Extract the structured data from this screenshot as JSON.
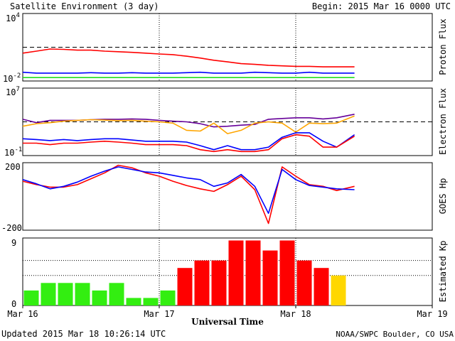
{
  "header": {
    "title": "Satellite Environment (3 day)",
    "begin": "Begin:  2015 Mar 16 0000 UTC"
  },
  "footer": {
    "updated": "Updated 2015 Mar 18 10:26:14 UTC",
    "credit": "NOAA/SWPC Boulder, CO USA"
  },
  "xaxis": {
    "label": "Universal Time",
    "ticks": [
      "Mar 16",
      "Mar 17",
      "Mar 18",
      "Mar 19"
    ]
  },
  "colors": {
    "red": "#ff0000",
    "blue": "#0000ff",
    "green": "#22dd22",
    "orange": "#ffa500",
    "purple": "#660099",
    "kp_green": "#33ee11",
    "kp_red": "#ff0000",
    "kp_yellow": "#ffd700"
  },
  "chart_data": [
    {
      "type": "line",
      "panel": "proton",
      "ylabel": "Proton Flux",
      "ytick_top": "10",
      "ytick_top_exp": "4",
      "ytick_bottom": "10",
      "ytick_bottom_exp": "-2",
      "scale": "log",
      "ylim": [
        0.01,
        10000
      ],
      "threshold": 10,
      "x_days": [
        0,
        0.1,
        0.2,
        0.3,
        0.4,
        0.5,
        0.6,
        0.7,
        0.8,
        0.9,
        1.0,
        1.1,
        1.2,
        1.3,
        1.4,
        1.5,
        1.6,
        1.7,
        1.8,
        1.9,
        2.0,
        2.1,
        2.2,
        2.3,
        2.43
      ],
      "series": [
        {
          "color": "red",
          "values": [
            3,
            4.5,
            7,
            6.5,
            5.5,
            5.5,
            4.5,
            4,
            3.5,
            3,
            2.5,
            2.2,
            1.6,
            1.1,
            0.7,
            0.5,
            0.35,
            0.3,
            0.25,
            0.22,
            0.2,
            0.2,
            0.18,
            0.18,
            0.18
          ]
        },
        {
          "color": "blue",
          "values": [
            0.06,
            0.05,
            0.05,
            0.05,
            0.05,
            0.055,
            0.05,
            0.05,
            0.055,
            0.05,
            0.05,
            0.05,
            0.055,
            0.06,
            0.05,
            0.05,
            0.05,
            0.06,
            0.055,
            0.05,
            0.05,
            0.06,
            0.05,
            0.05,
            0.05
          ]
        },
        {
          "color": "green",
          "values": [
            0.02,
            0.02,
            0.02,
            0.02,
            0.02,
            0.02,
            0.02,
            0.02,
            0.02,
            0.02,
            0.02,
            0.02,
            0.02,
            0.02,
            0.02,
            0.02,
            0.02,
            0.02,
            0.02,
            0.02,
            0.02,
            0.02,
            0.02,
            0.02,
            0.02
          ]
        }
      ]
    },
    {
      "type": "line",
      "panel": "electron",
      "ylabel": "Electron Flux",
      "ytick_top": "10",
      "ytick_top_exp": "7",
      "ytick_bottom": "10",
      "ytick_bottom_exp": "-1",
      "scale": "log",
      "ylim": [
        0.1,
        10000000
      ],
      "threshold": 1000,
      "x_days": [
        0,
        0.1,
        0.2,
        0.3,
        0.4,
        0.5,
        0.6,
        0.7,
        0.8,
        0.9,
        1.0,
        1.1,
        1.2,
        1.3,
        1.4,
        1.5,
        1.6,
        1.7,
        1.8,
        1.9,
        2.0,
        2.1,
        2.2,
        2.3,
        2.43
      ],
      "series": [
        {
          "color": "purple",
          "values": [
            2000,
            800,
            1500,
            1500,
            1500,
            1800,
            2000,
            2000,
            2200,
            2000,
            1500,
            1200,
            1000,
            600,
            250,
            300,
            400,
            500,
            2000,
            2500,
            3000,
            3000,
            2200,
            3000,
            8000
          ]
        },
        {
          "color": "orange",
          "values": [
            300,
            600,
            800,
            1200,
            1500,
            1800,
            1600,
            1400,
            1500,
            1200,
            1000,
            700,
            100,
            80,
            700,
            40,
            100,
            700,
            1000,
            700,
            60,
            700,
            600,
            700,
            5000
          ]
        },
        {
          "color": "blue",
          "values": [
            10,
            8,
            6,
            8,
            6,
            8,
            10,
            10,
            7,
            5,
            5,
            5,
            4,
            1.5,
            0.5,
            1.5,
            0.5,
            0.5,
            1,
            15,
            50,
            50,
            5,
            1,
            30
          ]
        },
        {
          "color": "red",
          "values": [
            3,
            3,
            2,
            3,
            3,
            4,
            5,
            4,
            3,
            2,
            2,
            2,
            1.5,
            0.5,
            0.3,
            0.5,
            0.3,
            0.3,
            0.5,
            10,
            30,
            20,
            1,
            1,
            20
          ]
        }
      ]
    },
    {
      "type": "line",
      "panel": "goes_hp",
      "ylabel": "GOES Hp",
      "ytick_top": "200",
      "ytick_bottom": "-200",
      "ylim": [
        -200,
        200
      ],
      "x_days": [
        0,
        0.1,
        0.2,
        0.3,
        0.4,
        0.5,
        0.6,
        0.7,
        0.8,
        0.9,
        1.0,
        1.1,
        1.2,
        1.3,
        1.4,
        1.5,
        1.6,
        1.7,
        1.8,
        1.9,
        2.0,
        2.1,
        2.2,
        2.3,
        2.43
      ],
      "series": [
        {
          "color": "red",
          "values": [
            90,
            70,
            55,
            55,
            70,
            105,
            140,
            185,
            170,
            140,
            120,
            90,
            65,
            45,
            30,
            70,
            120,
            40,
            -160,
            175,
            120,
            70,
            60,
            35,
            60
          ]
        },
        {
          "color": "blue",
          "values": [
            100,
            75,
            45,
            60,
            85,
            120,
            150,
            175,
            160,
            145,
            140,
            125,
            110,
            100,
            60,
            80,
            130,
            60,
            -100,
            160,
            100,
            65,
            55,
            45,
            40
          ]
        }
      ]
    },
    {
      "type": "bar",
      "panel": "kp",
      "ylabel": "Estimated Kp",
      "ytick_top": "9",
      "ytick_bottom": "0",
      "ylim": [
        0,
        9
      ],
      "values": [
        2,
        3,
        3,
        3,
        2,
        3,
        1,
        1,
        2,
        5,
        6,
        6,
        8.67,
        8.67,
        7.33,
        8.67,
        6,
        5,
        4
      ],
      "bar_colors": [
        "kp_green",
        "kp_green",
        "kp_green",
        "kp_green",
        "kp_green",
        "kp_green",
        "kp_green",
        "kp_green",
        "kp_green",
        "kp_red",
        "kp_red",
        "kp_red",
        "kp_red",
        "kp_red",
        "kp_red",
        "kp_red",
        "kp_red",
        "kp_red",
        "kp_yellow"
      ]
    }
  ]
}
